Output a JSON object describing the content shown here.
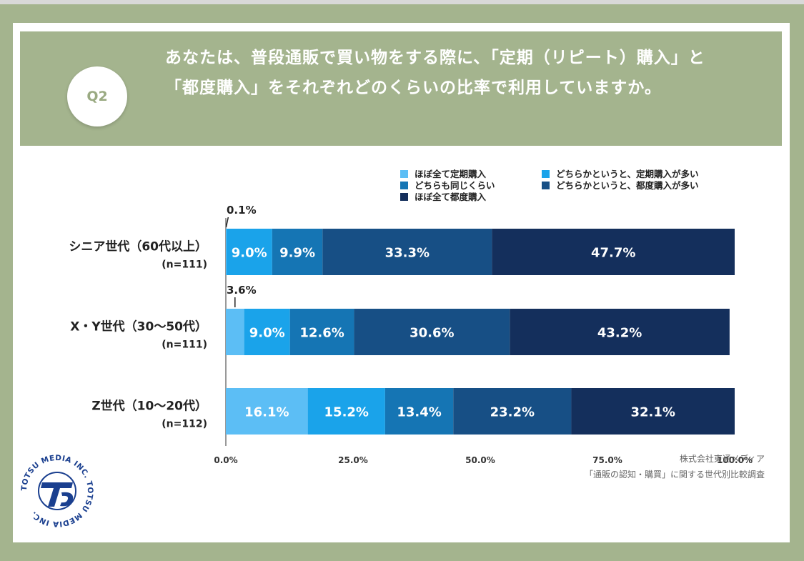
{
  "question": {
    "badge": "Q2",
    "text": "あなたは、普段通販で買い物をする際に、「定期（リピート）購入」と「都度購入」をそれぞれどのくらいの比率で利用していますか。"
  },
  "chart_data": {
    "type": "bar",
    "orientation": "horizontal",
    "stacked": true,
    "xlim": [
      0,
      100
    ],
    "x_ticks": [
      "0.0%",
      "25.0%",
      "50.0%",
      "75.0%",
      "100.0%"
    ],
    "categories": [
      {
        "name": "シニア世代（60代以上）",
        "n": "(n=111)"
      },
      {
        "name": "X・Y世代（30〜50代）",
        "n": "(n=111)"
      },
      {
        "name": "Z世代（10〜20代）",
        "n": "(n=112)"
      }
    ],
    "series": [
      {
        "name": "ほぼ全て定期購入",
        "color": "#5cbef5",
        "values": [
          0.1,
          3.6,
          16.1
        ],
        "labels": [
          "0.1%",
          "3.6%",
          "16.1%"
        ]
      },
      {
        "name": "どちらかというと、定期購入が多い",
        "color": "#1aa3ea",
        "values": [
          9.0,
          9.0,
          15.2
        ],
        "labels": [
          "9.0%",
          "9.0%",
          "15.2%"
        ]
      },
      {
        "name": "どちらも同じくらい",
        "color": "#1575b4",
        "values": [
          9.9,
          12.6,
          13.4
        ],
        "labels": [
          "9.9%",
          "12.6%",
          "13.4%"
        ]
      },
      {
        "name": "どちらかというと、都度購入が多い",
        "color": "#174f85",
        "values": [
          33.3,
          30.6,
          23.2
        ],
        "labels": [
          "33.3%",
          "30.6%",
          "23.2%"
        ]
      },
      {
        "name": "ほぼ全て都度購入",
        "color": "#142f5c",
        "values": [
          47.7,
          43.2,
          32.1
        ],
        "labels": [
          "47.7%",
          "43.2%",
          "32.1%"
        ]
      }
    ],
    "legend_position": "top-right"
  },
  "footer": {
    "company": "株式会社東通メディア",
    "survey": "「通販の認知・購買」に関する世代別比較調査"
  },
  "logo": {
    "text": "TOTSU MEDIA INC. TOTSU MEDIA INC."
  }
}
